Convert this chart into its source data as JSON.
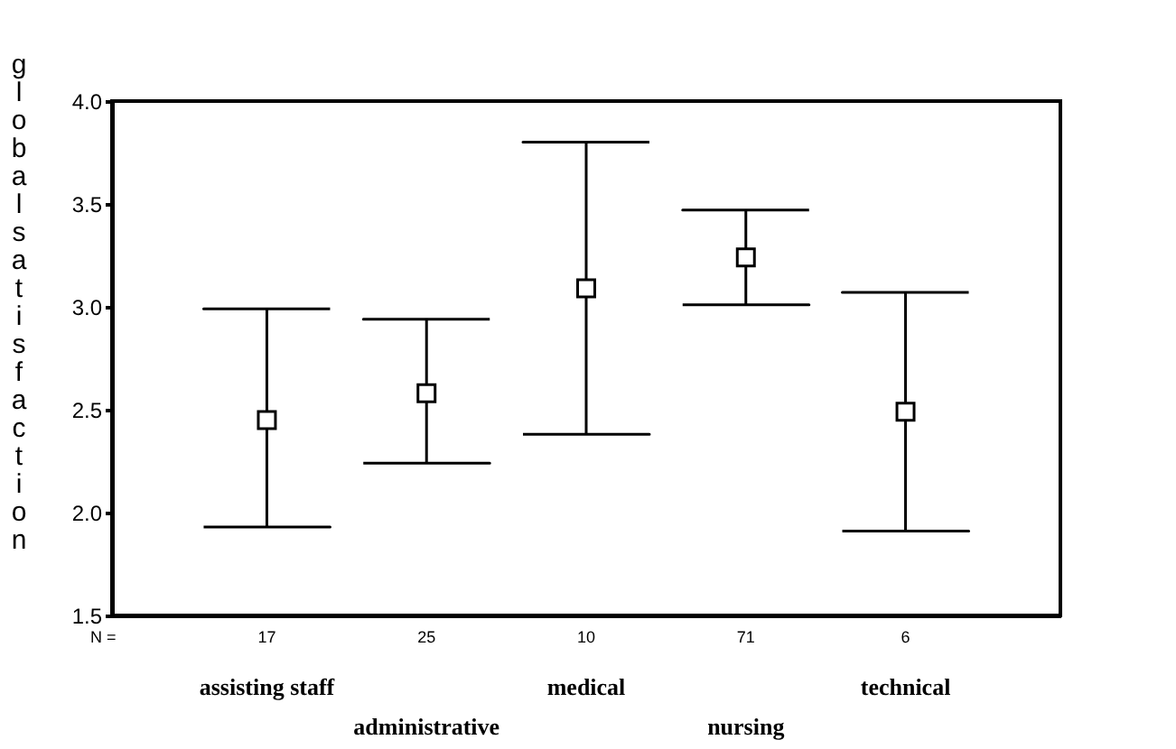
{
  "chart_data": {
    "type": "scatter",
    "ylabel": "global satisfaction",
    "categories": [
      "assisting staff",
      "administrative",
      "medical",
      "nursing",
      "technical"
    ],
    "values": [
      2.45,
      2.58,
      3.09,
      3.24,
      2.49
    ],
    "errors": [
      [
        1.93,
        2.99
      ],
      [
        2.24,
        2.94
      ],
      [
        2.38,
        3.8
      ],
      [
        3.01,
        3.47
      ],
      [
        1.91,
        3.07
      ]
    ],
    "marker": "square",
    "color": "#000000",
    "ylim": [
      1.5,
      4.0
    ],
    "yticks": [
      {
        "value": 1.5,
        "label": "1.5"
      },
      {
        "value": 2.0,
        "label": "2.0"
      },
      {
        "value": 2.5,
        "label": "2.5"
      },
      {
        "value": 3.0,
        "label": "3.0"
      },
      {
        "value": 3.5,
        "label": "3.5"
      },
      {
        "value": 4.0,
        "label": "4.0"
      }
    ],
    "annotations": [
      "N =",
      "17",
      "25",
      "10",
      "71",
      "6"
    ]
  }
}
